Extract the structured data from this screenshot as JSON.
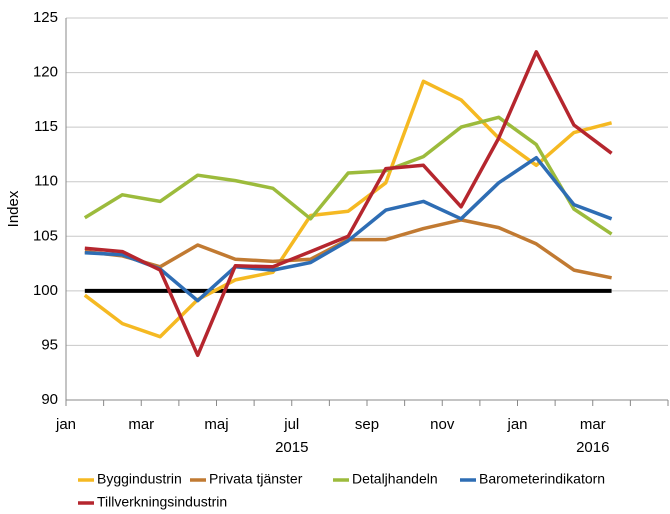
{
  "chart_data": {
    "type": "line",
    "ylabel": "Index",
    "categories": [
      "jan",
      null,
      "mar",
      null,
      "maj",
      null,
      "jul",
      null,
      "sep",
      null,
      "nov",
      null,
      "jan",
      null,
      "mar"
    ],
    "category_years": [
      null,
      null,
      null,
      null,
      null,
      null,
      "2015",
      null,
      null,
      null,
      null,
      null,
      null,
      null,
      "2016"
    ],
    "ylim": [
      90,
      125
    ],
    "yticks": [
      90,
      95,
      100,
      105,
      110,
      115,
      120,
      125
    ],
    "grid": true,
    "legend": "bottom",
    "reference_line": 100,
    "series": [
      {
        "name": "Byggindustrin",
        "color": "#f5b922",
        "values": [
          99.6,
          97.0,
          95.8,
          99.2,
          101.0,
          101.7,
          106.9,
          107.3,
          109.9,
          119.2,
          117.5,
          114.0,
          111.5,
          114.5,
          115.4
        ]
      },
      {
        "name": "Privata tjänster",
        "color": "#c17a32",
        "values": [
          103.6,
          103.2,
          102.2,
          104.2,
          102.9,
          102.7,
          102.9,
          104.7,
          104.7,
          105.7,
          106.5,
          105.8,
          104.3,
          101.9,
          101.2
        ]
      },
      {
        "name": "Detaljhandeln",
        "color": "#9cbb3c",
        "values": [
          106.7,
          108.8,
          108.2,
          110.6,
          110.1,
          109.4,
          106.6,
          110.8,
          111.0,
          112.3,
          115.0,
          115.9,
          113.4,
          107.5,
          105.2
        ]
      },
      {
        "name": "Barometerindikatorn",
        "color": "#2e6db4",
        "values": [
          103.5,
          103.3,
          102.0,
          99.1,
          102.2,
          101.9,
          102.6,
          104.6,
          107.4,
          108.2,
          106.6,
          109.9,
          112.2,
          107.9,
          106.6
        ]
      },
      {
        "name": "Tillverkningsindustrin",
        "color": "#b5262e",
        "values": [
          103.9,
          103.6,
          101.9,
          94.1,
          102.3,
          102.2,
          103.6,
          105.0,
          111.2,
          111.5,
          107.7,
          114.0,
          121.9,
          115.2,
          112.6
        ]
      }
    ]
  }
}
